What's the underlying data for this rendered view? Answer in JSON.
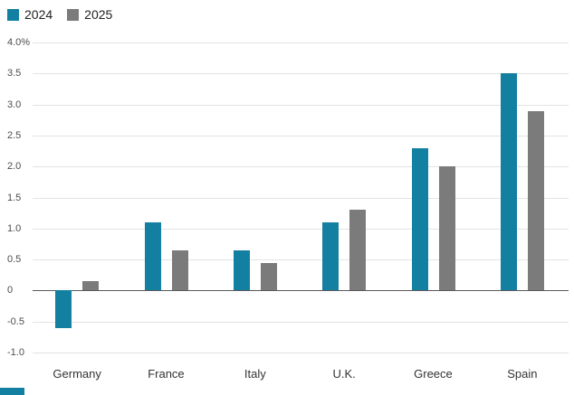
{
  "legend": {
    "items": [
      {
        "label": "2024",
        "color": "#1380A1"
      },
      {
        "label": "2025",
        "color": "#7b7b7b"
      }
    ]
  },
  "chart_data": {
    "type": "bar",
    "title": "",
    "xlabel": "",
    "ylabel": "",
    "categories": [
      "Germany",
      "France",
      "Italy",
      "U.K.",
      "Greece",
      "Spain"
    ],
    "series": [
      {
        "name": "2024",
        "color": "#1380A1",
        "values": [
          -0.6,
          1.1,
          0.65,
          1.1,
          2.3,
          3.5
        ]
      },
      {
        "name": "2025",
        "color": "#7b7b7b",
        "values": [
          0.15,
          0.65,
          0.45,
          1.3,
          2.0,
          2.9
        ]
      }
    ],
    "ylim": [
      -1.0,
      4.0
    ],
    "yticks": [
      4.0,
      3.5,
      3.0,
      2.5,
      2.0,
      1.5,
      1.0,
      0.5,
      0,
      -0.5,
      -1.0
    ],
    "ytick_labels": [
      "4.0%",
      "3.5",
      "3.0",
      "2.5",
      "2.0",
      "1.5",
      "1.0",
      "0.5",
      "0",
      "-0.5",
      "-1.0"
    ],
    "grid": true,
    "legend_position": "top-left",
    "accent_color": "#1380A1"
  }
}
